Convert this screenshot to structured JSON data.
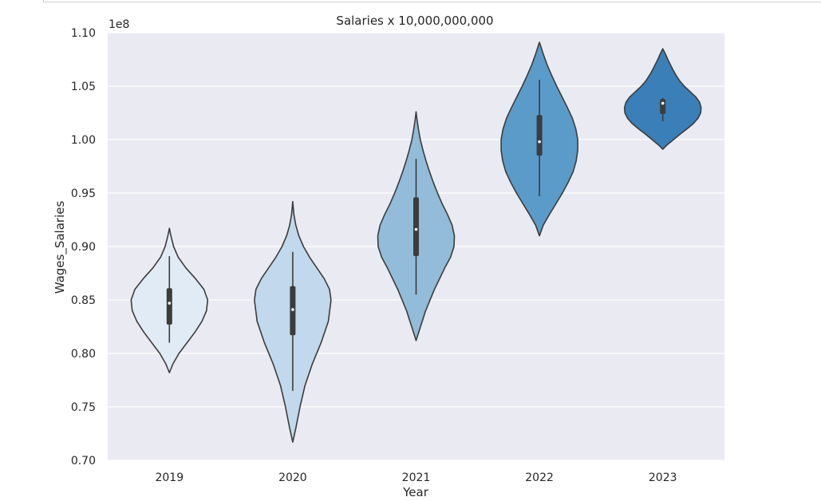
{
  "chart_data": {
    "type": "violin",
    "title": "Salaries x 10,000,000,000",
    "xlabel": "Year",
    "ylabel": "Wages_Salaries",
    "offset_text": "1e8",
    "ylim": [
      0.7,
      1.1
    ],
    "yticks": [
      "0.70",
      "0.75",
      "0.80",
      "0.85",
      "0.90",
      "0.95",
      "1.00",
      "1.05",
      "1.10"
    ],
    "grid": true,
    "categories": [
      "2019",
      "2020",
      "2021",
      "2022",
      "2023"
    ],
    "colors": {
      "plot_bg": "#eaeaf2",
      "grid": "#ffffff",
      "outline": "#3c3c3c",
      "violins": [
        "#e1ebf5",
        "#c2d8ec",
        "#92bcd9",
        "#5b9bc9",
        "#3a7fb8"
      ]
    },
    "violins": [
      {
        "year": "2019",
        "kde_min": 0.782,
        "kde_max": 0.917,
        "whisker_low": 0.81,
        "whisker_high": 0.891,
        "q1": 0.827,
        "q3": 0.861,
        "median": 0.847,
        "profile": [
          [
            0.782,
            0.0
          ],
          [
            0.79,
            0.09
          ],
          [
            0.8,
            0.25
          ],
          [
            0.81,
            0.46
          ],
          [
            0.82,
            0.67
          ],
          [
            0.83,
            0.85
          ],
          [
            0.84,
            0.97
          ],
          [
            0.85,
            1.0
          ],
          [
            0.86,
            0.9
          ],
          [
            0.87,
            0.68
          ],
          [
            0.88,
            0.43
          ],
          [
            0.89,
            0.23
          ],
          [
            0.9,
            0.11
          ],
          [
            0.91,
            0.04
          ],
          [
            0.917,
            0.0
          ]
        ]
      },
      {
        "year": "2020",
        "kde_min": 0.717,
        "kde_max": 0.942,
        "whisker_low": 0.765,
        "whisker_high": 0.895,
        "q1": 0.817,
        "q3": 0.863,
        "median": 0.841,
        "profile": [
          [
            0.717,
            0.0
          ],
          [
            0.73,
            0.08
          ],
          [
            0.75,
            0.19
          ],
          [
            0.77,
            0.32
          ],
          [
            0.79,
            0.51
          ],
          [
            0.81,
            0.74
          ],
          [
            0.83,
            0.93
          ],
          [
            0.85,
            1.0
          ],
          [
            0.86,
            0.96
          ],
          [
            0.87,
            0.82
          ],
          [
            0.88,
            0.63
          ],
          [
            0.89,
            0.44
          ],
          [
            0.9,
            0.28
          ],
          [
            0.91,
            0.16
          ],
          [
            0.92,
            0.08
          ],
          [
            0.93,
            0.03
          ],
          [
            0.942,
            0.0
          ]
        ]
      },
      {
        "year": "2021",
        "kde_min": 0.812,
        "kde_max": 1.026,
        "whisker_low": 0.855,
        "whisker_high": 0.982,
        "q1": 0.891,
        "q3": 0.946,
        "median": 0.916,
        "profile": [
          [
            0.812,
            0.0
          ],
          [
            0.82,
            0.07
          ],
          [
            0.84,
            0.25
          ],
          [
            0.86,
            0.48
          ],
          [
            0.88,
            0.75
          ],
          [
            0.89,
            0.9
          ],
          [
            0.9,
            0.99
          ],
          [
            0.91,
            1.0
          ],
          [
            0.92,
            0.94
          ],
          [
            0.93,
            0.82
          ],
          [
            0.94,
            0.68
          ],
          [
            0.95,
            0.56
          ],
          [
            0.96,
            0.45
          ],
          [
            0.97,
            0.35
          ],
          [
            0.98,
            0.26
          ],
          [
            0.99,
            0.18
          ],
          [
            1.0,
            0.11
          ],
          [
            1.01,
            0.06
          ],
          [
            1.02,
            0.02
          ],
          [
            1.026,
            0.0
          ]
        ]
      },
      {
        "year": "2022",
        "kde_min": 0.91,
        "kde_max": 1.091,
        "whisker_low": 0.947,
        "whisker_high": 1.056,
        "q1": 0.985,
        "q3": 1.023,
        "median": 0.998,
        "profile": [
          [
            0.91,
            0.0
          ],
          [
            0.92,
            0.1
          ],
          [
            0.93,
            0.26
          ],
          [
            0.94,
            0.43
          ],
          [
            0.95,
            0.6
          ],
          [
            0.96,
            0.75
          ],
          [
            0.97,
            0.88
          ],
          [
            0.98,
            0.96
          ],
          [
            0.99,
            1.0
          ],
          [
            1.0,
            1.0
          ],
          [
            1.01,
            0.95
          ],
          [
            1.02,
            0.86
          ],
          [
            1.03,
            0.73
          ],
          [
            1.04,
            0.59
          ],
          [
            1.05,
            0.45
          ],
          [
            1.06,
            0.32
          ],
          [
            1.07,
            0.2
          ],
          [
            1.08,
            0.1
          ],
          [
            1.091,
            0.0
          ]
        ]
      },
      {
        "year": "2023",
        "kde_min": 0.991,
        "kde_max": 1.085,
        "whisker_low": 1.017,
        "whisker_high": 1.039,
        "q1": 1.024,
        "q3": 1.038,
        "median": 1.034,
        "profile": [
          [
            0.991,
            0.0
          ],
          [
            0.995,
            0.11
          ],
          [
            1.0,
            0.28
          ],
          [
            1.005,
            0.45
          ],
          [
            1.01,
            0.63
          ],
          [
            1.015,
            0.8
          ],
          [
            1.02,
            0.92
          ],
          [
            1.025,
            0.99
          ],
          [
            1.03,
            1.0
          ],
          [
            1.035,
            0.96
          ],
          [
            1.04,
            0.86
          ],
          [
            1.045,
            0.71
          ],
          [
            1.05,
            0.56
          ],
          [
            1.055,
            0.44
          ],
          [
            1.06,
            0.35
          ],
          [
            1.065,
            0.27
          ],
          [
            1.07,
            0.2
          ],
          [
            1.075,
            0.13
          ],
          [
            1.08,
            0.07
          ],
          [
            1.085,
            0.0
          ]
        ]
      }
    ]
  }
}
